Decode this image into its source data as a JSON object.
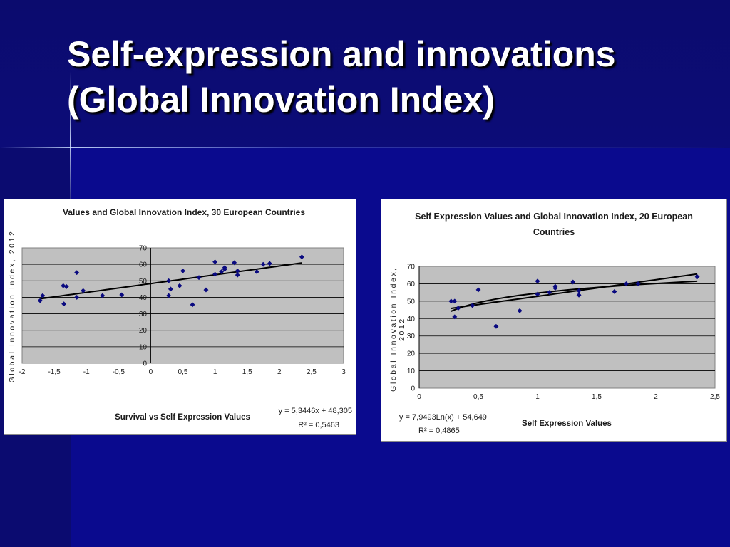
{
  "slide": {
    "title": "Self-expression and innovations (Global Innovation Index)"
  },
  "chart_data": [
    {
      "type": "scatter",
      "title": "Values and Global Innovation Index, 30 European Countries",
      "xlabel": "Survival vs Self Expression Values",
      "ylabel": "Global Innovation Index, 2012",
      "xlim": [
        -2,
        3
      ],
      "ylim": [
        0,
        70
      ],
      "xticks": [
        "-2",
        "-1,5",
        "-1",
        "-0,5",
        "0",
        "0,5",
        "1",
        "1,5",
        "2",
        "2,5",
        "3"
      ],
      "yticks": [
        "0",
        "10",
        "20",
        "30",
        "40",
        "50",
        "60",
        "70"
      ],
      "grid": true,
      "points": [
        [
          -1.72,
          38
        ],
        [
          -1.68,
          41
        ],
        [
          -1.36,
          47
        ],
        [
          -1.31,
          46.5
        ],
        [
          -1.35,
          36
        ],
        [
          -1.15,
          55
        ],
        [
          -1.15,
          40
        ],
        [
          -1.05,
          44
        ],
        [
          -0.75,
          41
        ],
        [
          -0.45,
          41.5
        ],
        [
          0.28,
          50
        ],
        [
          0.28,
          41
        ],
        [
          0.31,
          45
        ],
        [
          0.45,
          47
        ],
        [
          0.5,
          56
        ],
        [
          0.65,
          35.5
        ],
        [
          0.75,
          52
        ],
        [
          0.86,
          44.5
        ],
        [
          1.0,
          61.5
        ],
        [
          1.0,
          54
        ],
        [
          1.15,
          58
        ],
        [
          1.15,
          57
        ],
        [
          1.3,
          61
        ],
        [
          1.35,
          53.5
        ],
        [
          1.35,
          56
        ],
        [
          1.65,
          55.5
        ],
        [
          1.75,
          60
        ],
        [
          1.85,
          60.5
        ],
        [
          2.35,
          64.5
        ],
        [
          1.1,
          55.5
        ]
      ],
      "trendline": {
        "type": "linear",
        "slope": 5.3446,
        "intercept": 48.305,
        "x_range": [
          -1.72,
          2.35
        ]
      },
      "equation": "y = 5,3446x + 48,305",
      "r2": "R² = 0,5463"
    },
    {
      "type": "scatter",
      "title": "Self Expression Values and Global Innovation Index, 20 European Countries",
      "xlabel": "Self Expression Values",
      "ylabel": "Global Innovation Index, 2012",
      "xlim": [
        0,
        2.5
      ],
      "ylim": [
        0,
        70
      ],
      "xticks": [
        "0",
        "0,5",
        "1",
        "1,5",
        "2",
        "2,5"
      ],
      "yticks": [
        "0",
        "10",
        "20",
        "30",
        "40",
        "50",
        "60",
        "70"
      ],
      "grid": true,
      "points": [
        [
          0.27,
          50
        ],
        [
          0.3,
          50
        ],
        [
          0.3,
          41
        ],
        [
          0.33,
          46
        ],
        [
          0.45,
          47.5
        ],
        [
          0.5,
          56.5
        ],
        [
          0.65,
          35.5
        ],
        [
          0.85,
          44.5
        ],
        [
          1.0,
          61.5
        ],
        [
          1.0,
          54
        ],
        [
          1.15,
          58.5
        ],
        [
          1.15,
          57.5
        ],
        [
          1.3,
          61
        ],
        [
          1.35,
          53.5
        ],
        [
          1.35,
          56
        ],
        [
          1.65,
          55.5
        ],
        [
          1.75,
          60
        ],
        [
          1.85,
          60
        ],
        [
          2.35,
          64
        ],
        [
          1.1,
          55
        ]
      ],
      "trendlines": [
        {
          "type": "linear",
          "slope": 9.5,
          "intercept": 43.3,
          "x_range": [
            0.27,
            2.35
          ]
        },
        {
          "type": "logarithmic",
          "a": 7.9493,
          "b": 54.649,
          "x_range": [
            0.27,
            2.35
          ]
        }
      ],
      "equation": "y = 7,9493Ln(x) + 54,649",
      "r2": "R² = 0,4865"
    }
  ]
}
